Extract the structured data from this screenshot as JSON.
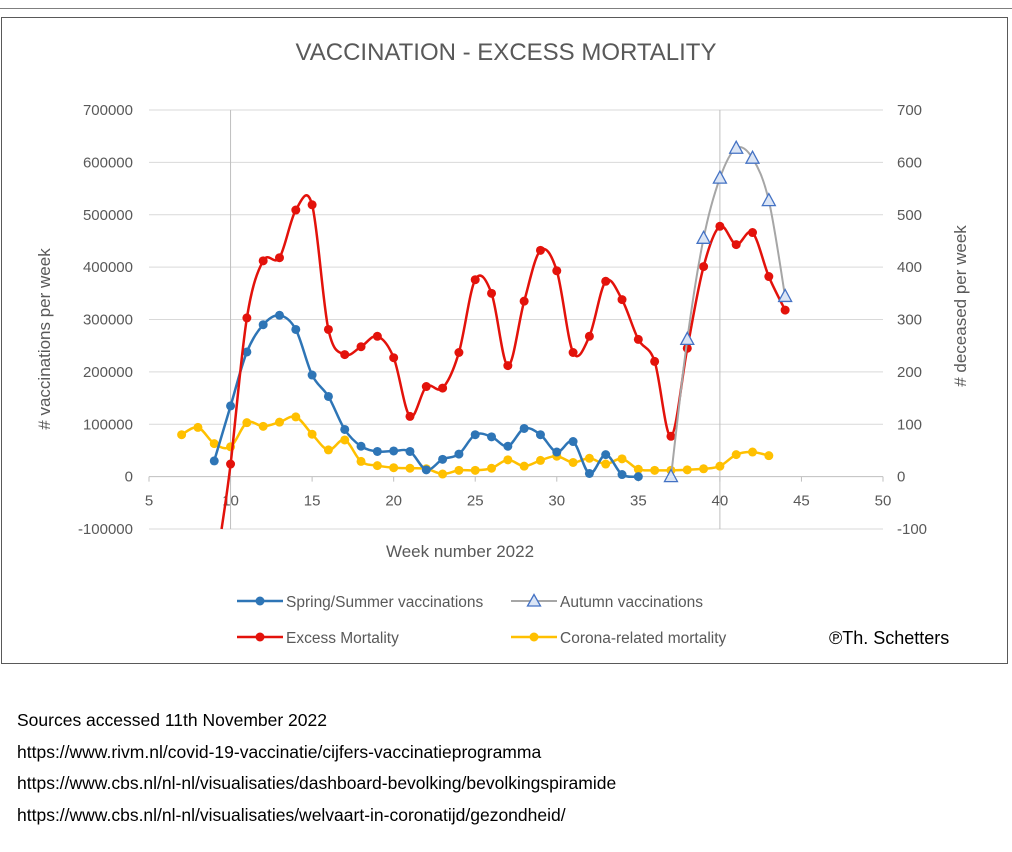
{
  "chart_data": {
    "type": "line",
    "title": "VACCINATION - EXCESS MORTALITY",
    "xlabel": "Week number 2022",
    "ylabel_left": "# vaccinations per week",
    "ylabel_right": "# deceased per week",
    "xlim": [
      5,
      50
    ],
    "xticks": [
      "5",
      "10",
      "15",
      "20",
      "25",
      "30",
      "35",
      "40",
      "45",
      "50"
    ],
    "ylim_left": [
      -100000,
      700000
    ],
    "yticks_left": [
      "-100000",
      "0",
      "100000",
      "200000",
      "300000",
      "400000",
      "500000",
      "600000",
      "700000"
    ],
    "ylim_right": [
      -100,
      700
    ],
    "yticks_right": [
      "-100",
      "0",
      "100",
      "200",
      "300",
      "400",
      "500",
      "600",
      "700"
    ],
    "grid": true,
    "legend_position": "bottom",
    "series": [
      {
        "name": "Spring/Summer vaccinations",
        "axis": "left",
        "color": "#2e75b6",
        "marker": "circle",
        "x": [
          9,
          10,
          11,
          12,
          13,
          14,
          15,
          16,
          17,
          18,
          19,
          20,
          21,
          22,
          23,
          24,
          25,
          26,
          27,
          28,
          29,
          30,
          31,
          32,
          33,
          34,
          35
        ],
        "values": [
          30000,
          135000,
          238000,
          290000,
          308000,
          281000,
          194000,
          153000,
          90000,
          58000,
          48000,
          49000,
          48000,
          13000,
          33000,
          43000,
          80000,
          76000,
          58000,
          92000,
          80000,
          47000,
          67000,
          6000,
          42000,
          4000,
          0
        ]
      },
      {
        "name": "Autumn vaccinations",
        "axis": "left",
        "color": "#a6a6a6",
        "marker_color": "#4472c4",
        "marker": "triangle",
        "x": [
          37,
          38,
          39,
          40,
          41,
          42,
          43,
          44
        ],
        "values": [
          0,
          262000,
          455000,
          570000,
          627000,
          608000,
          527000,
          344000
        ]
      },
      {
        "name": "Excess Mortality",
        "axis": "right",
        "color": "#e3120b",
        "marker": "circle",
        "x": [
          9.45,
          10,
          11,
          12,
          13,
          14,
          15,
          16,
          17,
          18,
          19,
          20,
          21,
          22,
          23,
          24,
          25,
          26,
          27,
          28,
          29,
          30,
          31,
          32,
          33,
          34,
          35,
          36,
          37,
          38,
          39,
          40,
          41,
          42,
          43,
          44
        ],
        "values": [
          -100,
          24,
          303,
          412,
          418,
          509,
          519,
          281,
          233,
          248,
          268,
          227,
          115,
          172,
          169,
          237,
          376,
          350,
          212,
          335,
          432,
          393,
          237,
          268,
          373,
          338,
          262,
          220,
          77,
          245,
          401,
          478,
          443,
          466,
          382,
          318
        ]
      },
      {
        "name": "Corona-related mortality",
        "axis": "right",
        "color": "#ffc000",
        "marker": "circle",
        "x": [
          7,
          8,
          9,
          10,
          11,
          12,
          13,
          14,
          15,
          16,
          17,
          18,
          19,
          20,
          21,
          22,
          23,
          24,
          25,
          26,
          27,
          28,
          29,
          30,
          31,
          32,
          33,
          34,
          35,
          36,
          37,
          38,
          39,
          40,
          41,
          42,
          43
        ],
        "values": [
          80,
          94,
          63,
          57,
          103,
          96,
          104,
          114,
          81,
          51,
          70,
          29,
          21,
          17,
          16,
          15,
          5,
          12,
          12,
          16,
          32,
          20,
          31,
          39,
          27,
          35,
          24,
          34,
          14,
          12,
          12,
          13,
          15,
          20,
          42,
          47,
          40
        ]
      }
    ]
  },
  "copyright": "℗Th. Schetters",
  "sources": {
    "heading": "Sources accessed 11th  November 2022",
    "links": [
      "https://www.rivm.nl/covid-19-vaccinatie/cijfers-vaccinatieprogramma",
      "https://www.cbs.nl/nl-nl/visualisaties/dashboard-bevolking/bevolkingspiramide",
      "https://www.cbs.nl/nl-nl/visualisaties/welvaart-in-coronatijd/gezondheid/"
    ]
  }
}
